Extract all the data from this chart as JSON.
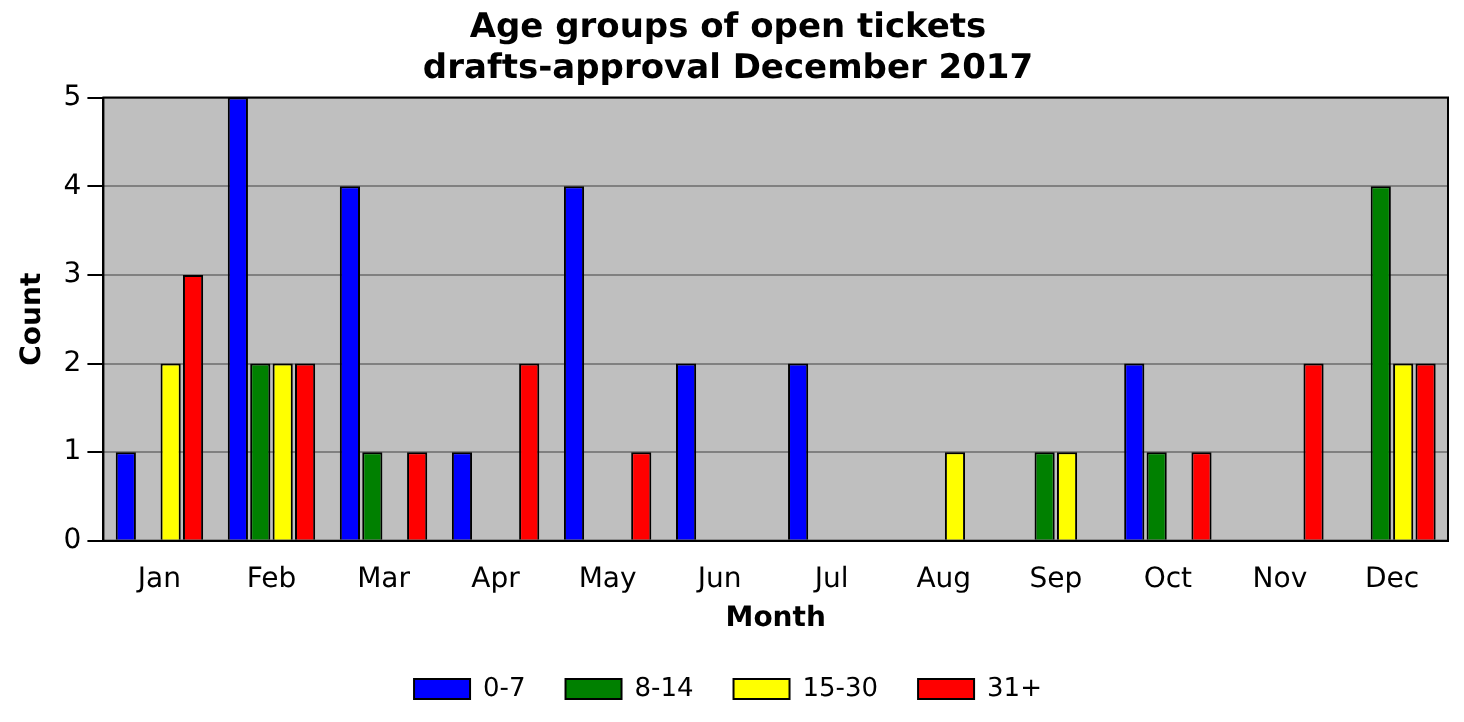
{
  "chart_data": {
    "type": "bar",
    "title": "Age groups of open tickets\ndrafts-approval December 2017",
    "xlabel": "Month",
    "ylabel": "Count",
    "categories": [
      "Jan",
      "Feb",
      "Mar",
      "Apr",
      "May",
      "Jun",
      "Jul",
      "Aug",
      "Sep",
      "Oct",
      "Nov",
      "Dec"
    ],
    "series": [
      {
        "name": "0-7",
        "color": "#0000ff",
        "values": [
          1,
          5,
          4,
          1,
          4,
          2,
          2,
          0,
          0,
          2,
          0,
          0
        ]
      },
      {
        "name": "8-14",
        "color": "#008000",
        "values": [
          0,
          2,
          1,
          0,
          0,
          0,
          0,
          0,
          1,
          1,
          0,
          4
        ]
      },
      {
        "name": "15-30",
        "color": "#ffff00",
        "values": [
          2,
          2,
          0,
          0,
          0,
          0,
          0,
          1,
          1,
          0,
          0,
          2
        ]
      },
      {
        "name": "31+",
        "color": "#ff0000",
        "values": [
          3,
          2,
          1,
          2,
          1,
          0,
          0,
          0,
          0,
          1,
          2,
          2
        ]
      }
    ],
    "ylim": [
      0,
      5
    ],
    "yticks": [
      0,
      1,
      2,
      3,
      4,
      5
    ],
    "grid": "y",
    "legend": "bottom"
  }
}
